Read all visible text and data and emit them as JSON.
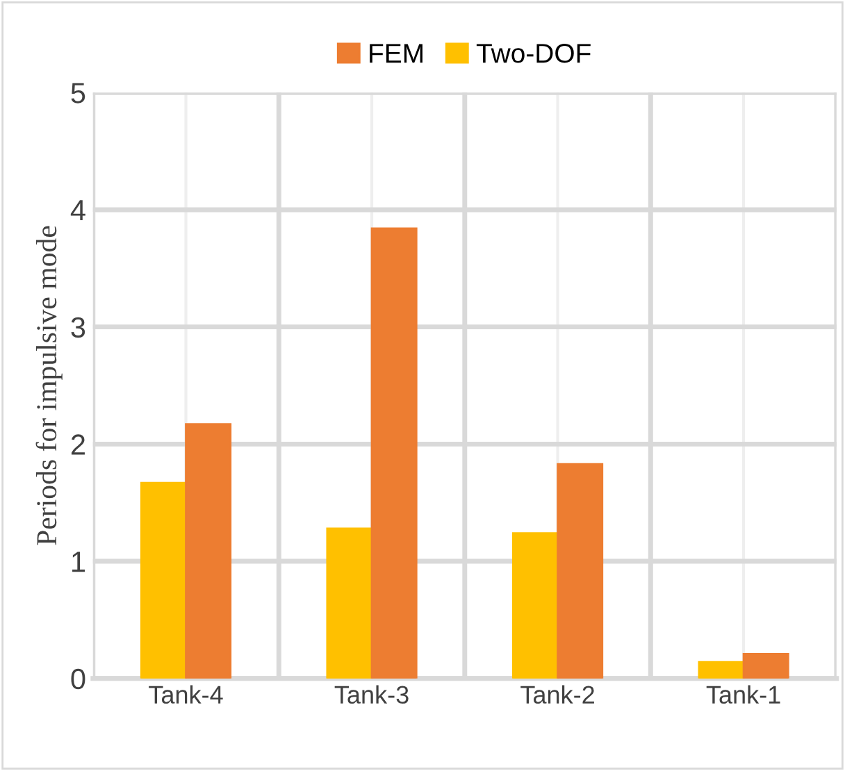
{
  "chart_data": {
    "type": "bar",
    "ylabel": "Periods for impulsive mode",
    "categories": [
      "Tank-4",
      "Tank-3",
      "Tank-2",
      "Tank-1"
    ],
    "series": [
      {
        "name": "Two-DOF",
        "color": "#ffc000",
        "values": [
          1.67,
          1.28,
          1.24,
          0.14
        ]
      },
      {
        "name": "FEM",
        "color": "#ed7d31",
        "values": [
          2.17,
          3.84,
          1.83,
          0.21
        ]
      }
    ],
    "ylim": [
      0,
      5
    ],
    "yticks": [
      0,
      1,
      2,
      3,
      4,
      5
    ],
    "grid": true,
    "legend": "top"
  }
}
